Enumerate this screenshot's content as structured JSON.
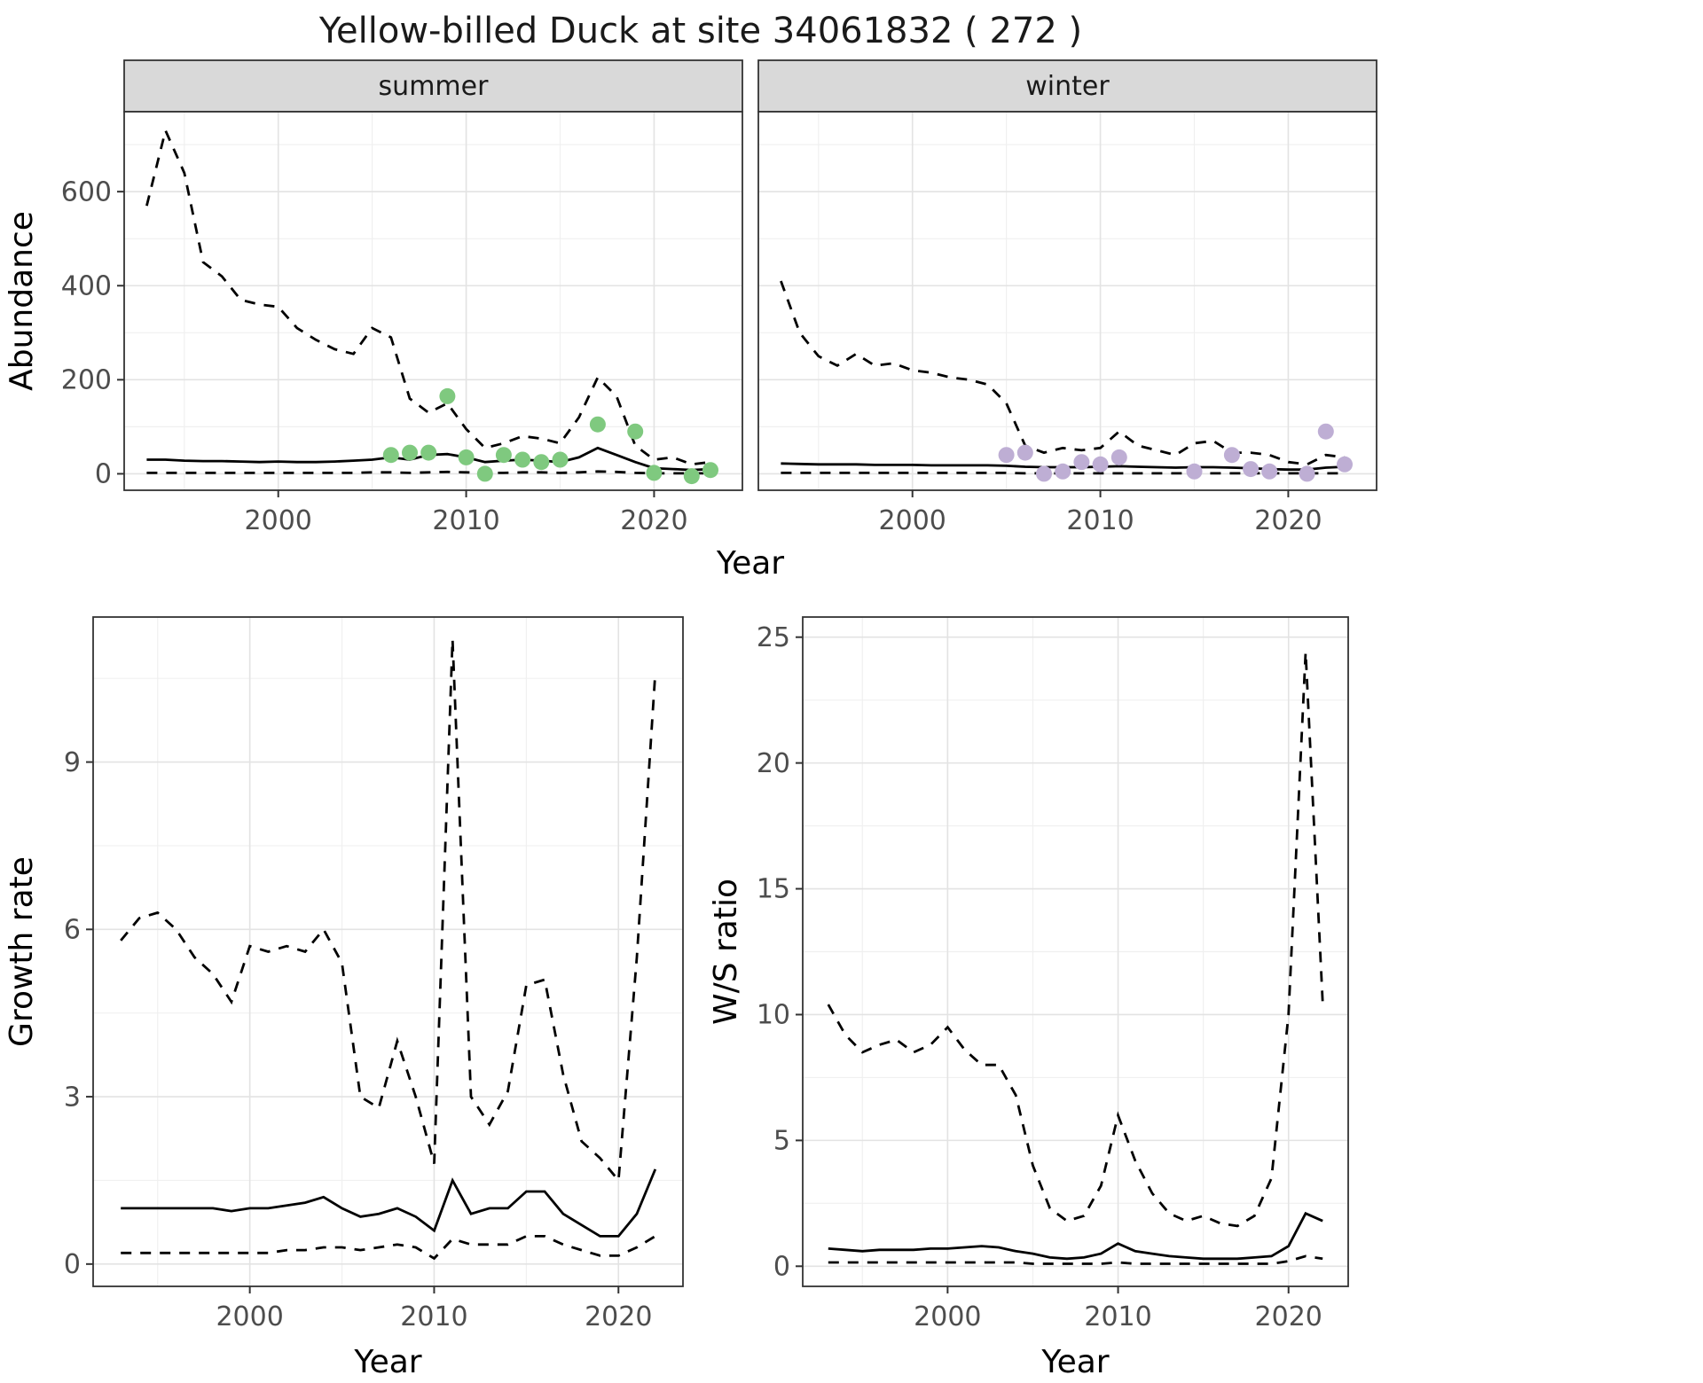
{
  "title": "Yellow-billed Duck at site 34061832 ( 272 )",
  "colors": {
    "summer_points": "#7fc97f",
    "winter_points": "#beaed4",
    "line": "#000000",
    "strip_bg": "#d9d9d9",
    "grid_major": "#e3e3e3",
    "grid_minor": "#f0f0f0",
    "panel_border": "#333333",
    "tick_text": "#4d4d4d",
    "axis_text": "#000000"
  },
  "chart_data": [
    {
      "id": "abundance-summer",
      "type": "line",
      "facet_label": "summer",
      "ylabel": "Abundance",
      "xlabel": "Year",
      "xlim": [
        1991.8,
        2024.7
      ],
      "ylim": [
        -35,
        770
      ],
      "xticks": [
        2000,
        2010,
        2020
      ],
      "yticks": [
        0,
        200,
        400,
        600
      ],
      "series": [
        {
          "name": "upper-ci",
          "style": "dashed",
          "x": [
            1993,
            1994,
            1995,
            1996,
            1997,
            1998,
            1999,
            2000,
            2001,
            2002,
            2003,
            2004,
            2005,
            2006,
            2007,
            2008,
            2009,
            2010,
            2011,
            2012,
            2013,
            2014,
            2015,
            2016,
            2017,
            2018,
            2019,
            2020,
            2021,
            2022,
            2023
          ],
          "y": [
            570,
            730,
            640,
            450,
            420,
            370,
            360,
            355,
            310,
            285,
            265,
            255,
            310,
            290,
            160,
            130,
            150,
            95,
            55,
            65,
            80,
            75,
            65,
            120,
            205,
            165,
            60,
            30,
            35,
            20,
            25
          ]
        },
        {
          "name": "median",
          "style": "solid",
          "x": [
            1993,
            1994,
            1995,
            1996,
            1997,
            1998,
            1999,
            2000,
            2001,
            2002,
            2003,
            2004,
            2005,
            2006,
            2007,
            2008,
            2009,
            2010,
            2011,
            2012,
            2013,
            2014,
            2015,
            2016,
            2017,
            2018,
            2019,
            2020,
            2021,
            2022,
            2023
          ],
          "y": [
            30,
            30,
            28,
            27,
            27,
            26,
            25,
            26,
            25,
            25,
            26,
            28,
            30,
            35,
            30,
            40,
            42,
            35,
            25,
            28,
            30,
            28,
            25,
            35,
            55,
            40,
            25,
            12,
            10,
            8,
            10
          ]
        },
        {
          "name": "lower-ci",
          "style": "dashed",
          "x": [
            1993,
            1994,
            1995,
            1996,
            1997,
            1998,
            1999,
            2000,
            2001,
            2002,
            2003,
            2004,
            2005,
            2006,
            2007,
            2008,
            2009,
            2010,
            2011,
            2012,
            2013,
            2014,
            2015,
            2016,
            2017,
            2018,
            2019,
            2020,
            2021,
            2022,
            2023
          ],
          "y": [
            2,
            2,
            2,
            2,
            2,
            2,
            2,
            2,
            2,
            2,
            2,
            2,
            3,
            3,
            2,
            3,
            4,
            3,
            2,
            2,
            3,
            3,
            2,
            3,
            5,
            4,
            2,
            1,
            1,
            1,
            1
          ]
        }
      ],
      "points": {
        "name": "summer-observed",
        "color": "#7fc97f",
        "x": [
          2006,
          2007,
          2008,
          2009,
          2010,
          2011,
          2012,
          2013,
          2014,
          2015,
          2017,
          2019,
          2020,
          2022,
          2023
        ],
        "y": [
          40,
          45,
          45,
          165,
          35,
          0,
          40,
          30,
          25,
          30,
          105,
          90,
          2,
          -5,
          8
        ]
      }
    },
    {
      "id": "abundance-winter",
      "type": "line",
      "facet_label": "winter",
      "ylabel": "Abundance",
      "xlabel": "Year",
      "xlim": [
        1991.8,
        2024.7
      ],
      "ylim": [
        -35,
        770
      ],
      "xticks": [
        2000,
        2010,
        2020
      ],
      "yticks": [
        0,
        200,
        400,
        600
      ],
      "series": [
        {
          "name": "upper-ci",
          "style": "dashed",
          "x": [
            1993,
            1994,
            1995,
            1996,
            1997,
            1998,
            1999,
            2000,
            2001,
            2002,
            2003,
            2004,
            2005,
            2006,
            2007,
            2008,
            2009,
            2010,
            2011,
            2012,
            2013,
            2014,
            2015,
            2016,
            2017,
            2018,
            2019,
            2020,
            2021,
            2022,
            2023
          ],
          "y": [
            410,
            300,
            250,
            230,
            255,
            230,
            235,
            220,
            215,
            205,
            200,
            190,
            150,
            60,
            45,
            55,
            50,
            55,
            90,
            60,
            50,
            40,
            65,
            70,
            45,
            45,
            40,
            25,
            20,
            40,
            35
          ]
        },
        {
          "name": "median",
          "style": "solid",
          "x": [
            1993,
            1994,
            1995,
            1996,
            1997,
            1998,
            1999,
            2000,
            2001,
            2002,
            2003,
            2004,
            2005,
            2006,
            2007,
            2008,
            2009,
            2010,
            2011,
            2012,
            2013,
            2014,
            2015,
            2016,
            2017,
            2018,
            2019,
            2020,
            2021,
            2022,
            2023
          ],
          "y": [
            22,
            21,
            20,
            20,
            20,
            19,
            19,
            19,
            18,
            18,
            18,
            18,
            17,
            15,
            14,
            14,
            14,
            15,
            16,
            15,
            14,
            13,
            14,
            14,
            13,
            12,
            10,
            9,
            9,
            13,
            15
          ]
        },
        {
          "name": "lower-ci",
          "style": "dashed",
          "x": [
            1993,
            1994,
            1995,
            1996,
            1997,
            1998,
            1999,
            2000,
            2001,
            2002,
            2003,
            2004,
            2005,
            2006,
            2007,
            2008,
            2009,
            2010,
            2011,
            2012,
            2013,
            2014,
            2015,
            2016,
            2017,
            2018,
            2019,
            2020,
            2021,
            2022,
            2023
          ],
          "y": [
            2,
            2,
            2,
            2,
            2,
            2,
            2,
            2,
            2,
            2,
            2,
            2,
            2,
            1,
            1,
            1,
            1,
            1,
            1,
            1,
            1,
            1,
            1,
            1,
            1,
            1,
            1,
            1,
            1,
            1,
            1
          ]
        }
      ],
      "points": {
        "name": "winter-observed",
        "color": "#beaed4",
        "x": [
          2005,
          2006,
          2007,
          2008,
          2009,
          2010,
          2011,
          2015,
          2017,
          2018,
          2019,
          2021,
          2022,
          2023
        ],
        "y": [
          40,
          45,
          0,
          5,
          25,
          20,
          35,
          5,
          40,
          10,
          5,
          0,
          90,
          20
        ]
      }
    },
    {
      "id": "growth-rate",
      "type": "line",
      "facet_label": "",
      "ylabel": "Growth rate",
      "xlabel": "Year",
      "xlim": [
        1991.5,
        2023.5
      ],
      "ylim": [
        -0.4,
        11.6
      ],
      "xticks": [
        2000,
        2010,
        2020
      ],
      "yticks": [
        0,
        3,
        6,
        9
      ],
      "series": [
        {
          "name": "upper-ci",
          "style": "dashed",
          "x": [
            1993,
            1994,
            1995,
            1996,
            1997,
            1998,
            1999,
            2000,
            2001,
            2002,
            2003,
            2004,
            2005,
            2006,
            2007,
            2008,
            2009,
            2010,
            2011,
            2012,
            2013,
            2014,
            2015,
            2016,
            2017,
            2018,
            2019,
            2020,
            2021,
            2022
          ],
          "y": [
            5.8,
            6.2,
            6.3,
            6.0,
            5.5,
            5.2,
            4.7,
            5.7,
            5.6,
            5.7,
            5.6,
            6.0,
            5.4,
            3.0,
            2.8,
            4.0,
            3.0,
            1.8,
            11.2,
            3.0,
            2.5,
            3.1,
            5.0,
            5.1,
            3.4,
            2.2,
            1.9,
            1.5,
            5.5,
            10.6
          ]
        },
        {
          "name": "median",
          "style": "solid",
          "x": [
            1993,
            1994,
            1995,
            1996,
            1997,
            1998,
            1999,
            2000,
            2001,
            2002,
            2003,
            2004,
            2005,
            2006,
            2007,
            2008,
            2009,
            2010,
            2011,
            2012,
            2013,
            2014,
            2015,
            2016,
            2017,
            2018,
            2019,
            2020,
            2021,
            2022
          ],
          "y": [
            1.0,
            1.0,
            1.0,
            1.0,
            1.0,
            1.0,
            0.95,
            1.0,
            1.0,
            1.05,
            1.1,
            1.2,
            1.0,
            0.85,
            0.9,
            1.0,
            0.85,
            0.6,
            1.5,
            0.9,
            1.0,
            1.0,
            1.3,
            1.3,
            0.9,
            0.7,
            0.5,
            0.5,
            0.9,
            1.7
          ]
        },
        {
          "name": "lower-ci",
          "style": "dashed",
          "x": [
            1993,
            1994,
            1995,
            1996,
            1997,
            1998,
            1999,
            2000,
            2001,
            2002,
            2003,
            2004,
            2005,
            2006,
            2007,
            2008,
            2009,
            2010,
            2011,
            2012,
            2013,
            2014,
            2015,
            2016,
            2017,
            2018,
            2019,
            2020,
            2021,
            2022
          ],
          "y": [
            0.2,
            0.2,
            0.2,
            0.2,
            0.2,
            0.2,
            0.2,
            0.2,
            0.2,
            0.25,
            0.25,
            0.3,
            0.3,
            0.25,
            0.3,
            0.35,
            0.3,
            0.1,
            0.45,
            0.35,
            0.35,
            0.35,
            0.5,
            0.5,
            0.35,
            0.25,
            0.15,
            0.15,
            0.3,
            0.5
          ]
        }
      ],
      "points": null
    },
    {
      "id": "ws-ratio",
      "type": "line",
      "facet_label": "",
      "ylabel": "W/S ratio",
      "xlabel": "Year",
      "xlim": [
        1991.5,
        2023.5
      ],
      "ylim": [
        -0.8,
        25.8
      ],
      "xticks": [
        2000,
        2010,
        2020
      ],
      "yticks": [
        0,
        5,
        10,
        15,
        20,
        25
      ],
      "series": [
        {
          "name": "upper-ci",
          "style": "dashed",
          "x": [
            1993,
            1994,
            1995,
            1996,
            1997,
            1998,
            1999,
            2000,
            2001,
            2002,
            2003,
            2004,
            2005,
            2006,
            2007,
            2008,
            2009,
            2010,
            2011,
            2012,
            2013,
            2014,
            2015,
            2016,
            2017,
            2018,
            2019,
            2020,
            2021,
            2022
          ],
          "y": [
            10.4,
            9.2,
            8.5,
            8.8,
            9.0,
            8.5,
            8.8,
            9.5,
            8.6,
            8.0,
            8.0,
            6.8,
            4.0,
            2.3,
            1.8,
            2.0,
            3.2,
            6.0,
            4.2,
            2.9,
            2.1,
            1.8,
            2.0,
            1.7,
            1.6,
            2.0,
            3.5,
            10.0,
            24.4,
            10.5
          ]
        },
        {
          "name": "median",
          "style": "solid",
          "x": [
            1993,
            1994,
            1995,
            1996,
            1997,
            1998,
            1999,
            2000,
            2001,
            2002,
            2003,
            2004,
            2005,
            2006,
            2007,
            2008,
            2009,
            2010,
            2011,
            2012,
            2013,
            2014,
            2015,
            2016,
            2017,
            2018,
            2019,
            2020,
            2021,
            2022
          ],
          "y": [
            0.7,
            0.65,
            0.6,
            0.65,
            0.65,
            0.65,
            0.7,
            0.7,
            0.75,
            0.8,
            0.75,
            0.6,
            0.5,
            0.35,
            0.3,
            0.35,
            0.5,
            0.9,
            0.6,
            0.5,
            0.4,
            0.35,
            0.3,
            0.3,
            0.3,
            0.35,
            0.4,
            0.8,
            2.1,
            1.8
          ]
        },
        {
          "name": "lower-ci",
          "style": "dashed",
          "x": [
            1993,
            1994,
            1995,
            1996,
            1997,
            1998,
            1999,
            2000,
            2001,
            2002,
            2003,
            2004,
            2005,
            2006,
            2007,
            2008,
            2009,
            2010,
            2011,
            2012,
            2013,
            2014,
            2015,
            2016,
            2017,
            2018,
            2019,
            2020,
            2021,
            2022
          ],
          "y": [
            0.15,
            0.15,
            0.15,
            0.15,
            0.15,
            0.15,
            0.15,
            0.15,
            0.15,
            0.15,
            0.15,
            0.15,
            0.1,
            0.1,
            0.1,
            0.1,
            0.1,
            0.15,
            0.1,
            0.1,
            0.1,
            0.1,
            0.1,
            0.1,
            0.1,
            0.1,
            0.1,
            0.2,
            0.4,
            0.3
          ]
        }
      ],
      "points": null
    }
  ]
}
